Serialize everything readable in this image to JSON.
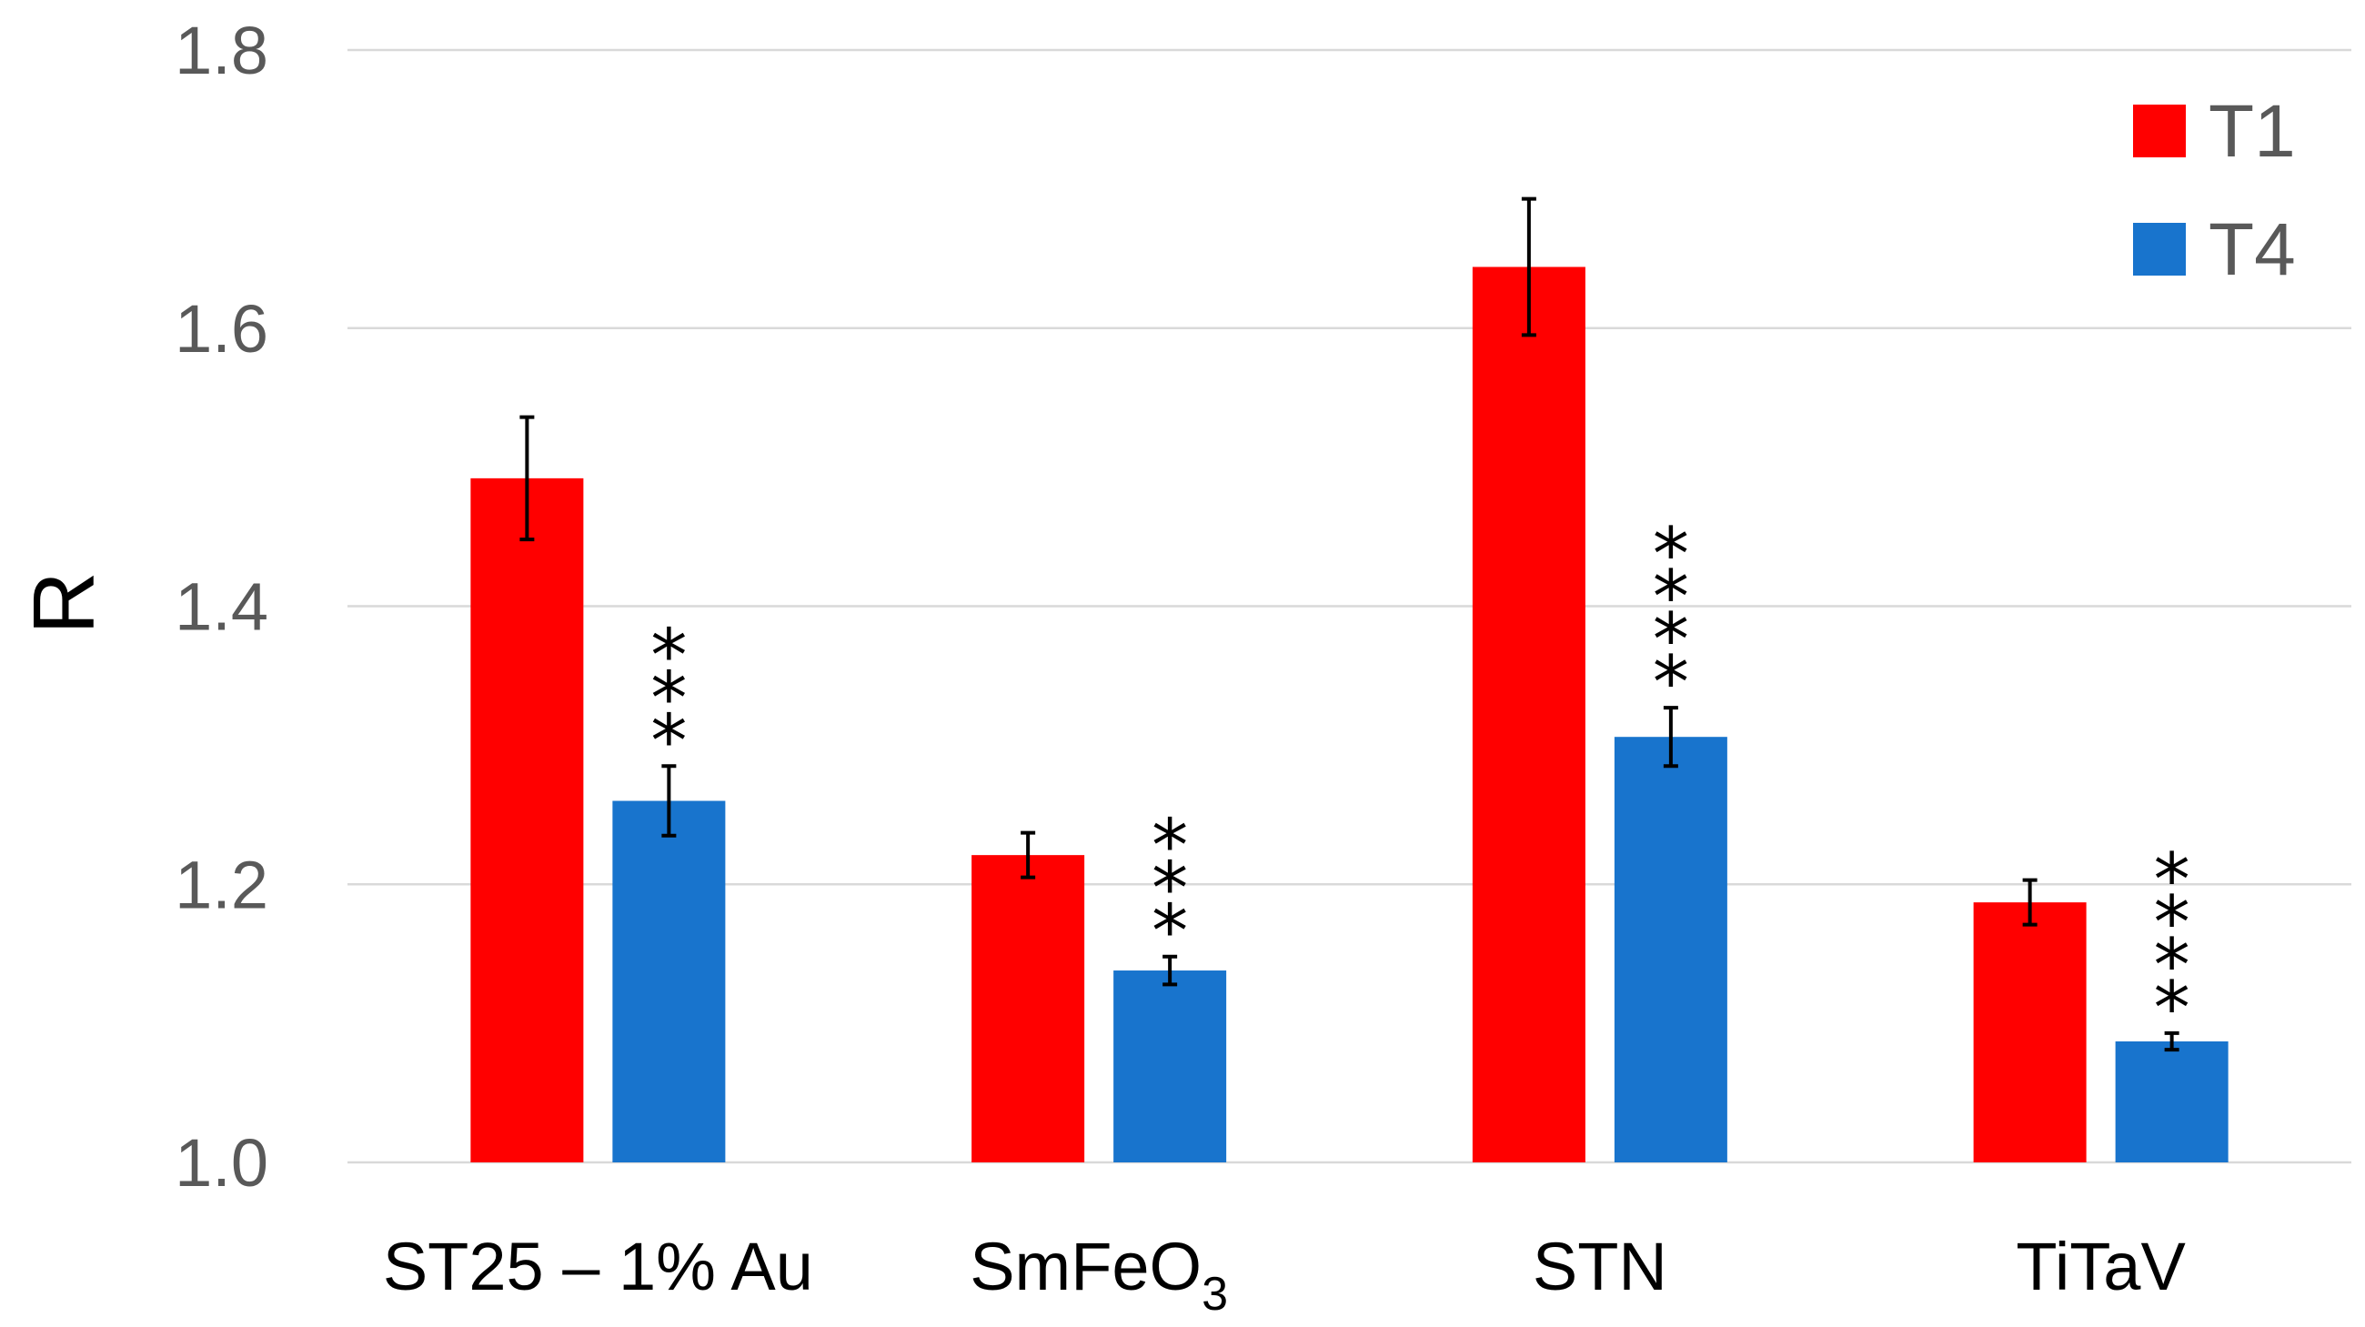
{
  "chart_data": {
    "type": "bar",
    "title": "",
    "xlabel": "",
    "ylabel": "R",
    "ylim": [
      1.0,
      1.8
    ],
    "yticks": [
      "1.0",
      "1.2",
      "1.4",
      "1.6",
      "1.8"
    ],
    "grid": true,
    "legend_position": "top-right",
    "categories": [
      {
        "base": "ST25 – 1% Au",
        "sub": ""
      },
      {
        "base": "SmFeO",
        "sub": "3"
      },
      {
        "base": "STN",
        "sub": ""
      },
      {
        "base": "TiTaV",
        "sub": ""
      }
    ],
    "series": [
      {
        "name": "T1",
        "color": "#ff0000",
        "values": [
          1.492,
          1.221,
          1.644,
          1.187
        ],
        "errors": [
          0.044,
          0.016,
          0.049,
          0.016
        ]
      },
      {
        "name": "T4",
        "color": "#1874cd",
        "values": [
          1.26,
          1.138,
          1.306,
          1.087
        ],
        "errors": [
          0.025,
          0.01,
          0.021,
          0.006
        ]
      }
    ],
    "significance": [
      "***",
      "***",
      "****",
      "****"
    ]
  }
}
